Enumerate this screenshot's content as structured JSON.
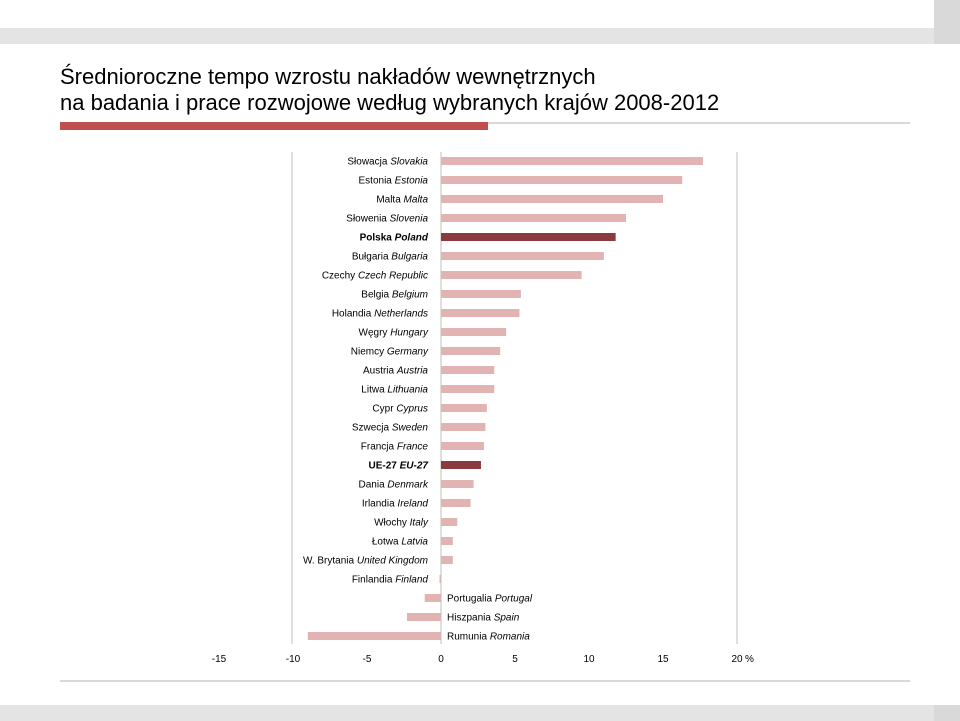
{
  "title_line1": "Średnioroczne tempo wzrostu nakładów wewnętrznych",
  "title_line2": "na badania i prace rozwojowe według wybranych krajów 2008-2012",
  "colors": {
    "normal": "#e2b3b3",
    "highlight": "#8b3a3f",
    "accent": "#c0504d",
    "axis": "#bfbfbf"
  },
  "chart_data": {
    "type": "bar",
    "orientation": "horizontal",
    "title": "",
    "xlabel": "",
    "ylabel": "",
    "unit": "%",
    "xlim": [
      -15,
      20
    ],
    "xticks": [
      "-15",
      "-10",
      "-5",
      "0",
      "5",
      "10",
      "15",
      "20"
    ],
    "grid": false,
    "categories": [
      {
        "pl": "Słowacja",
        "en": "Slovakia",
        "value": 17.7,
        "highlight": false
      },
      {
        "pl": "Estonia",
        "en": "Estonia",
        "value": 16.3,
        "highlight": false
      },
      {
        "pl": "Malta",
        "en": "Malta",
        "value": 15.0,
        "highlight": false
      },
      {
        "pl": "Słowenia",
        "en": "Slovenia",
        "value": 12.5,
        "highlight": false
      },
      {
        "pl": "Polska",
        "en": "Poland",
        "value": 11.8,
        "highlight": true
      },
      {
        "pl": "Bułgaria",
        "en": "Bulgaria",
        "value": 11.0,
        "highlight": false
      },
      {
        "pl": "Czechy",
        "en": "Czech Republic",
        "value": 9.5,
        "highlight": false
      },
      {
        "pl": "Belgia",
        "en": "Belgium",
        "value": 5.4,
        "highlight": false
      },
      {
        "pl": "Holandia",
        "en": "Netherlands",
        "value": 5.3,
        "highlight": false
      },
      {
        "pl": "Węgry",
        "en": "Hungary",
        "value": 4.4,
        "highlight": false
      },
      {
        "pl": "Niemcy",
        "en": "Germany",
        "value": 4.0,
        "highlight": false
      },
      {
        "pl": "Austria",
        "en": "Austria",
        "value": 3.6,
        "highlight": false
      },
      {
        "pl": "Litwa",
        "en": "Lithuania",
        "value": 3.6,
        "highlight": false
      },
      {
        "pl": "Cypr",
        "en": "Cyprus",
        "value": 3.1,
        "highlight": false
      },
      {
        "pl": "Szwecja",
        "en": "Sweden",
        "value": 3.0,
        "highlight": false
      },
      {
        "pl": "Francja",
        "en": "France",
        "value": 2.9,
        "highlight": false
      },
      {
        "pl": "UE-27",
        "en": "EU-27",
        "value": 2.7,
        "highlight": true
      },
      {
        "pl": "Dania",
        "en": "Denmark",
        "value": 2.2,
        "highlight": false
      },
      {
        "pl": "Irlandia",
        "en": "Ireland",
        "value": 2.0,
        "highlight": false
      },
      {
        "pl": "Włochy",
        "en": "Italy",
        "value": 1.1,
        "highlight": false
      },
      {
        "pl": "Łotwa",
        "en": "Latvia",
        "value": 0.8,
        "highlight": false
      },
      {
        "pl": "W. Brytania",
        "en": "United Kingdom",
        "value": 0.8,
        "highlight": false
      },
      {
        "pl": "Finlandia",
        "en": "Finland",
        "value": -0.1,
        "highlight": false
      },
      {
        "pl": "Portugalia",
        "en": "Portugal",
        "value": -1.1,
        "highlight": false
      },
      {
        "pl": "Hiszpania",
        "en": "Spain",
        "value": -2.3,
        "highlight": false
      },
      {
        "pl": "Rumunia",
        "en": "Romania",
        "value": -9.0,
        "highlight": false
      }
    ]
  }
}
